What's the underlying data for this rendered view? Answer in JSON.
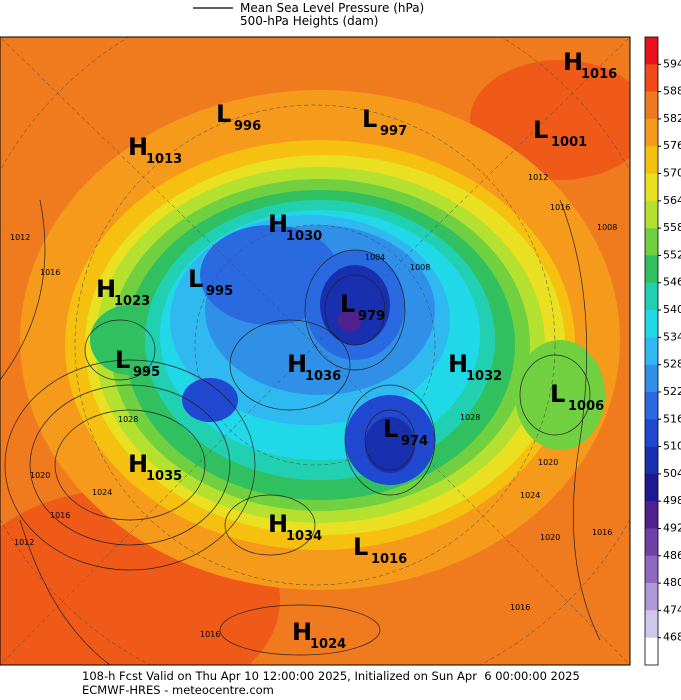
{
  "header": {
    "line1": "Mean Sea Level Pressure (hPa)",
    "line2": "500-hPa Heights (dam)"
  },
  "colorbar": {
    "ticks": [
      594,
      588,
      582,
      576,
      570,
      564,
      558,
      552,
      546,
      540,
      534,
      528,
      522,
      516,
      510,
      504,
      498,
      492,
      486,
      480,
      474,
      468
    ],
    "colors": [
      "#e8101a",
      "#f04818",
      "#f0781e",
      "#f59a1a",
      "#f5c010",
      "#e8e020",
      "#b4e030",
      "#70d040",
      "#30c060",
      "#20d0b0",
      "#20d8e8",
      "#30b8f0",
      "#3090e8",
      "#2a6ae0",
      "#2048d0",
      "#1830b0",
      "#201890",
      "#502090",
      "#7040a8",
      "#9068c0",
      "#b098d8",
      "#d0c8ec",
      "#ffffff"
    ]
  },
  "pressure_centers": [
    {
      "type": "H",
      "value": "1016"
    },
    {
      "type": "L",
      "value": "996"
    },
    {
      "type": "L",
      "value": "997"
    },
    {
      "type": "L",
      "value": "1001"
    },
    {
      "type": "H",
      "value": "1013"
    },
    {
      "type": "H",
      "value": "1030"
    },
    {
      "type": "H",
      "value": "1023"
    },
    {
      "type": "L",
      "value": "995"
    },
    {
      "type": "L",
      "value": "979"
    },
    {
      "type": "L",
      "value": "995"
    },
    {
      "type": "H",
      "value": "1036"
    },
    {
      "type": "H",
      "value": "1032"
    },
    {
      "type": "L",
      "value": "1006"
    },
    {
      "type": "L",
      "value": "974"
    },
    {
      "type": "H",
      "value": "1035"
    },
    {
      "type": "H",
      "value": "1034"
    },
    {
      "type": "L",
      "value": "1016"
    },
    {
      "type": "H",
      "value": "1024"
    }
  ],
  "contour_labels": [
    "1012",
    "1016",
    "1008",
    "1016",
    "1012",
    "1028",
    "1020",
    "1024",
    "1016",
    "1012",
    "1004",
    "1008",
    "1028",
    "1020",
    "1024",
    "1020",
    "1016",
    "1016",
    "1016"
  ],
  "footer": {
    "line1": "108-h Fcst Valid on Thu Apr 10 12:00:00 2025, Initialized on Sun Apr  6 00:00:00 2025",
    "line2": "ECMWF-HRES - meteocentre.com"
  }
}
